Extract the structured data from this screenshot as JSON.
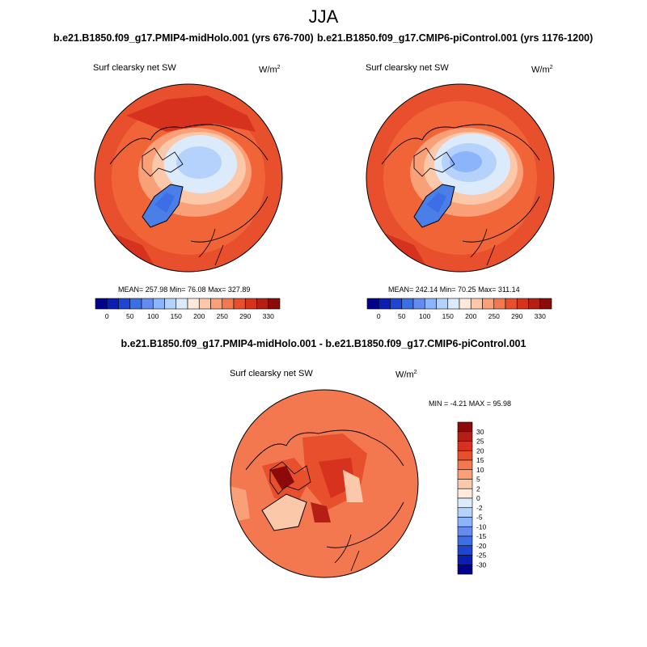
{
  "header": {
    "title": "JJA",
    "case1": "b.e21.B1850.f09_g17.PMIP4-midHolo.001 (yrs 676-700)",
    "case2": "b.e21.B1850.f09_g17.CMIP6-piControl.001 (yrs 1176-1200)",
    "diff": "b.e21.B1850.f09_g17.PMIP4-midHolo.001 - b.e21.B1850.f09_g17.CMIP6-piControl.001"
  },
  "panels": {
    "p1": {
      "variable": "Surf clearsky net SW",
      "units": "W/m",
      "units_sup": "2",
      "stats": "MEAN= 257.98  Min=  76.08  Max= 327.89"
    },
    "p2": {
      "variable": "Surf clearsky net SW",
      "units": "W/m",
      "units_sup": "2",
      "stats": "MEAN= 242.14  Min=  70.25  Max= 311.14"
    },
    "p3": {
      "variable": "Surf clearsky net SW",
      "units": "W/m",
      "units_sup": "2",
      "stats": "MIN =  -4.21 MAX =  95.98"
    }
  },
  "colors": {
    "abs_scale": [
      "#00008c",
      "#0a1eb4",
      "#1e46d2",
      "#3c6ee6",
      "#648cf0",
      "#8cb4fa",
      "#b4d2fc",
      "#dcebfc",
      "#fdeadc",
      "#fcc8aa",
      "#f9a078",
      "#f37850",
      "#e8502d",
      "#d6321e",
      "#b41e14",
      "#8c0a0a"
    ],
    "diff_scale": [
      "#00008c",
      "#0a1eb4",
      "#1e46d2",
      "#3c6ee6",
      "#648cf0",
      "#8cb4fa",
      "#b4d2fc",
      "#dcebfc",
      "#fdeadc",
      "#fcc8aa",
      "#f9a078",
      "#f37850",
      "#e8502d",
      "#d6321e",
      "#b41e14",
      "#8c0a0a"
    ],
    "map_outer": "#e8502d",
    "map_mid": "#f06438",
    "arctic_pale": "#dcebfc",
    "arctic_blue": "#8cb4fa",
    "greenland": "#4a7fe8"
  },
  "chart_data": [
    {
      "type": "heatmap",
      "projection": "north-polar-stereographic",
      "title": "Surf clearsky net SW",
      "units": "W/m2",
      "colorbar_labels": [
        "0",
        "50",
        "100",
        "150",
        "200",
        "250",
        "290",
        "330"
      ],
      "mean": 257.98,
      "min": 76.08,
      "max": 327.89
    },
    {
      "type": "heatmap",
      "projection": "north-polar-stereographic",
      "title": "Surf clearsky net SW",
      "units": "W/m2",
      "colorbar_labels": [
        "0",
        "50",
        "100",
        "150",
        "200",
        "250",
        "290",
        "330"
      ],
      "mean": 242.14,
      "min": 70.25,
      "max": 311.14
    },
    {
      "type": "heatmap",
      "projection": "north-polar-stereographic",
      "title": "Surf clearsky net SW",
      "units": "W/m2",
      "colorbar_labels": [
        "30",
        "25",
        "20",
        "15",
        "10",
        "5",
        "2",
        "0",
        "-2",
        "-5",
        "-10",
        "-15",
        "-20",
        "-25",
        "-30"
      ],
      "min": -4.21,
      "max": 95.98
    }
  ]
}
